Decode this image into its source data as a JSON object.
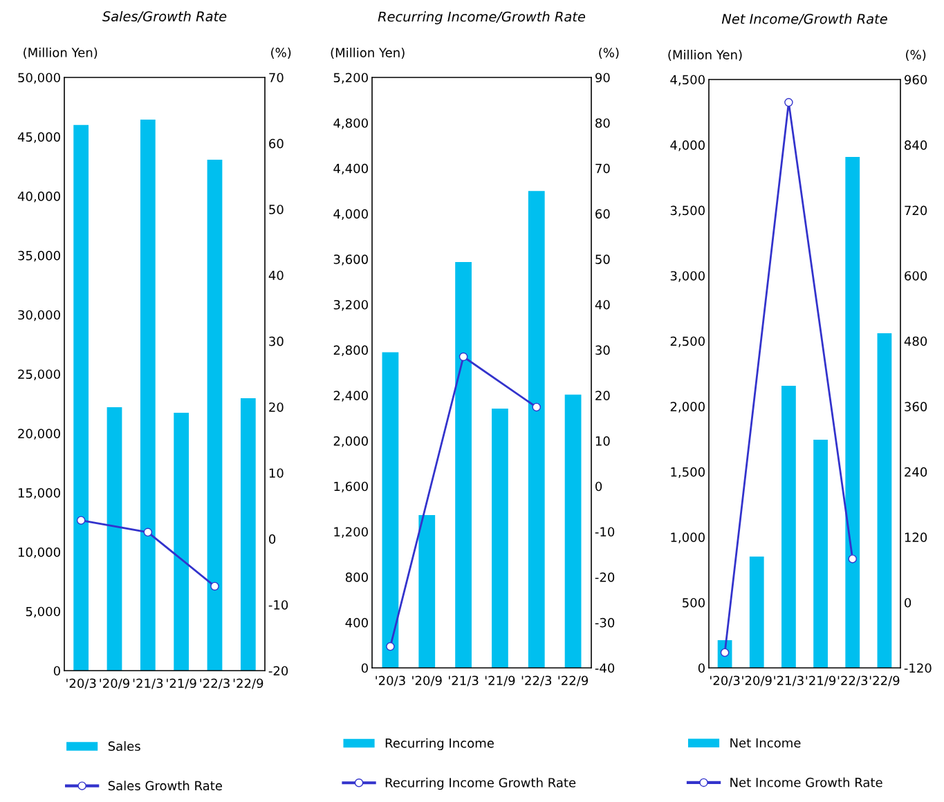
{
  "chart_data": [
    {
      "type": "bar",
      "title": "Sales/Growth Rate",
      "ylabel": "(Million Yen)",
      "y2label": "(%)",
      "categories": [
        "'20/3",
        "'20/9",
        "'21/3",
        "'21/9",
        "'22/3",
        "'22/9"
      ],
      "series": [
        {
          "name": "Sales",
          "color": "#00bfef",
          "values": [
            46000,
            22200,
            46450,
            21740,
            43070,
            22960
          ]
        },
        {
          "name": "Sales Growth Rate",
          "type": "line",
          "axis": "y2",
          "color": "#3333cc",
          "marker": "circle",
          "values": [
            2.8,
            null,
            1.0,
            null,
            -7.2,
            null
          ]
        }
      ],
      "ylim": [
        0,
        50000
      ],
      "yticks": [
        0,
        {
          "value": 5000,
          "label": "5,000"
        },
        {
          "value": 10000,
          "label": "10,000"
        },
        {
          "value": 15000,
          "label": "15,000"
        },
        {
          "value": 20000,
          "label": "20,000"
        },
        {
          "value": 25000,
          "label": "25,000"
        },
        {
          "value": 30000,
          "label": "30,000"
        },
        {
          "value": 35000,
          "label": "35,000"
        },
        {
          "value": 40000,
          "label": "40,000"
        },
        {
          "value": 45000,
          "label": "45,000"
        },
        {
          "value": 50000,
          "label": "50,000"
        }
      ],
      "y2lim": [
        -20,
        70
      ],
      "y2ticks": [
        -20,
        -10,
        0,
        10,
        20,
        30,
        40,
        50,
        60,
        70
      ],
      "legend": "bottom",
      "grid": false
    },
    {
      "type": "bar",
      "title": "Recurring Income/Growth Rate",
      "ylabel": "(Million Yen)",
      "y2label": "(%)",
      "categories": [
        "'20/3",
        "'20/9",
        "'21/3",
        "'21/9",
        "'22/3",
        "'22/9"
      ],
      "series": [
        {
          "name": "Recurring Income",
          "color": "#00bfef",
          "values": [
            2780,
            1346,
            3575,
            2284,
            4200,
            2406
          ]
        },
        {
          "name": "Recurring Income Growth Rate",
          "type": "line",
          "axis": "y2",
          "color": "#3333cc",
          "marker": "circle",
          "values": [
            -35.3,
            null,
            28.5,
            null,
            17.4,
            null
          ]
        }
      ],
      "ylim": [
        0,
        5200
      ],
      "yticks": [
        0,
        400,
        800,
        {
          "value": 1200,
          "label": "1,200"
        },
        {
          "value": 1600,
          "label": "1,600"
        },
        {
          "value": 2000,
          "label": "2,000"
        },
        {
          "value": 2400,
          "label": "2,400"
        },
        {
          "value": 2800,
          "label": "2,800"
        },
        {
          "value": 3200,
          "label": "3,200"
        },
        {
          "value": 3600,
          "label": "3,600"
        },
        {
          "value": 4000,
          "label": "4,000"
        },
        {
          "value": 4400,
          "label": "4,400"
        },
        {
          "value": 4800,
          "label": "4,800"
        },
        {
          "value": 5200,
          "label": "5,200"
        }
      ],
      "y2lim": [
        -40,
        90
      ],
      "y2ticks": [
        -40,
        -30,
        -20,
        -10,
        0,
        10,
        20,
        30,
        40,
        50,
        60,
        70,
        80,
        90
      ],
      "legend": "bottom",
      "grid": false
    },
    {
      "type": "bar",
      "title": "Net Income/Growth Rate",
      "ylabel": "(Million Yen)",
      "y2label": "(%)",
      "categories": [
        "'20/3",
        "'20/9",
        "'21/3",
        "'21/9",
        "'22/3",
        "'22/9"
      ],
      "series": [
        {
          "name": "Net Income",
          "color": "#00bfef",
          "values": [
            212,
            851,
            2158,
            1745,
            3908,
            2559
          ]
        },
        {
          "name": "Net Income Growth Rate",
          "type": "line",
          "axis": "y2",
          "color": "#3333cc",
          "marker": "circle",
          "values": [
            -92,
            null,
            918,
            null,
            80,
            null
          ]
        }
      ],
      "ylim": [
        0,
        4500
      ],
      "yticks": [
        0,
        500,
        {
          "value": 1000,
          "label": "1,000"
        },
        {
          "value": 1500,
          "label": "1,500"
        },
        {
          "value": 2000,
          "label": "2,000"
        },
        {
          "value": 2500,
          "label": "2,500"
        },
        {
          "value": 3000,
          "label": "3,000"
        },
        {
          "value": 3500,
          "label": "3,500"
        },
        {
          "value": 4000,
          "label": "4,000"
        },
        {
          "value": 4500,
          "label": "4,500"
        }
      ],
      "y2lim": [
        -120,
        960
      ],
      "y2ticks": [
        -120,
        0,
        120,
        240,
        360,
        480,
        600,
        720,
        840,
        960
      ],
      "legend": "bottom",
      "grid": false
    }
  ]
}
